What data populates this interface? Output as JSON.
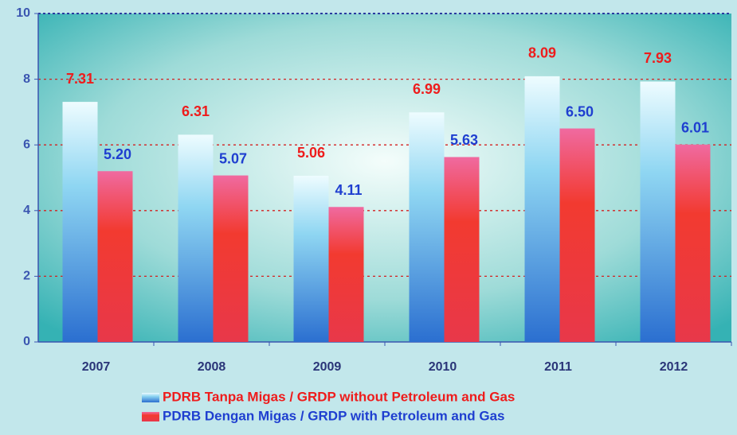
{
  "chart_data": {
    "type": "bar",
    "categories": [
      "2007",
      "2008",
      "2009",
      "2010",
      "2011",
      "2012"
    ],
    "series": [
      {
        "name": "PDRB Tanpa Migas / GRDP without Petroleum and Gas",
        "color": "#2b6fd0",
        "values": [
          7.31,
          6.31,
          5.06,
          6.99,
          8.09,
          7.93
        ],
        "value_labels": [
          "7.31",
          "6.31",
          "5.06",
          "6.99",
          "8.09",
          "7.93"
        ]
      },
      {
        "name": "PDRB Dengan Migas / GRDP with Petroleum and Gas",
        "color": "#e8384a",
        "values": [
          5.2,
          5.07,
          4.11,
          5.63,
          6.5,
          6.01
        ],
        "value_labels": [
          "5.20",
          "5.07",
          "4.11",
          "5.63",
          "6.50",
          "6.01"
        ]
      }
    ],
    "ylim": [
      0,
      10
    ],
    "yticks": [
      0,
      2,
      4,
      6,
      8,
      10
    ],
    "grid": true
  }
}
